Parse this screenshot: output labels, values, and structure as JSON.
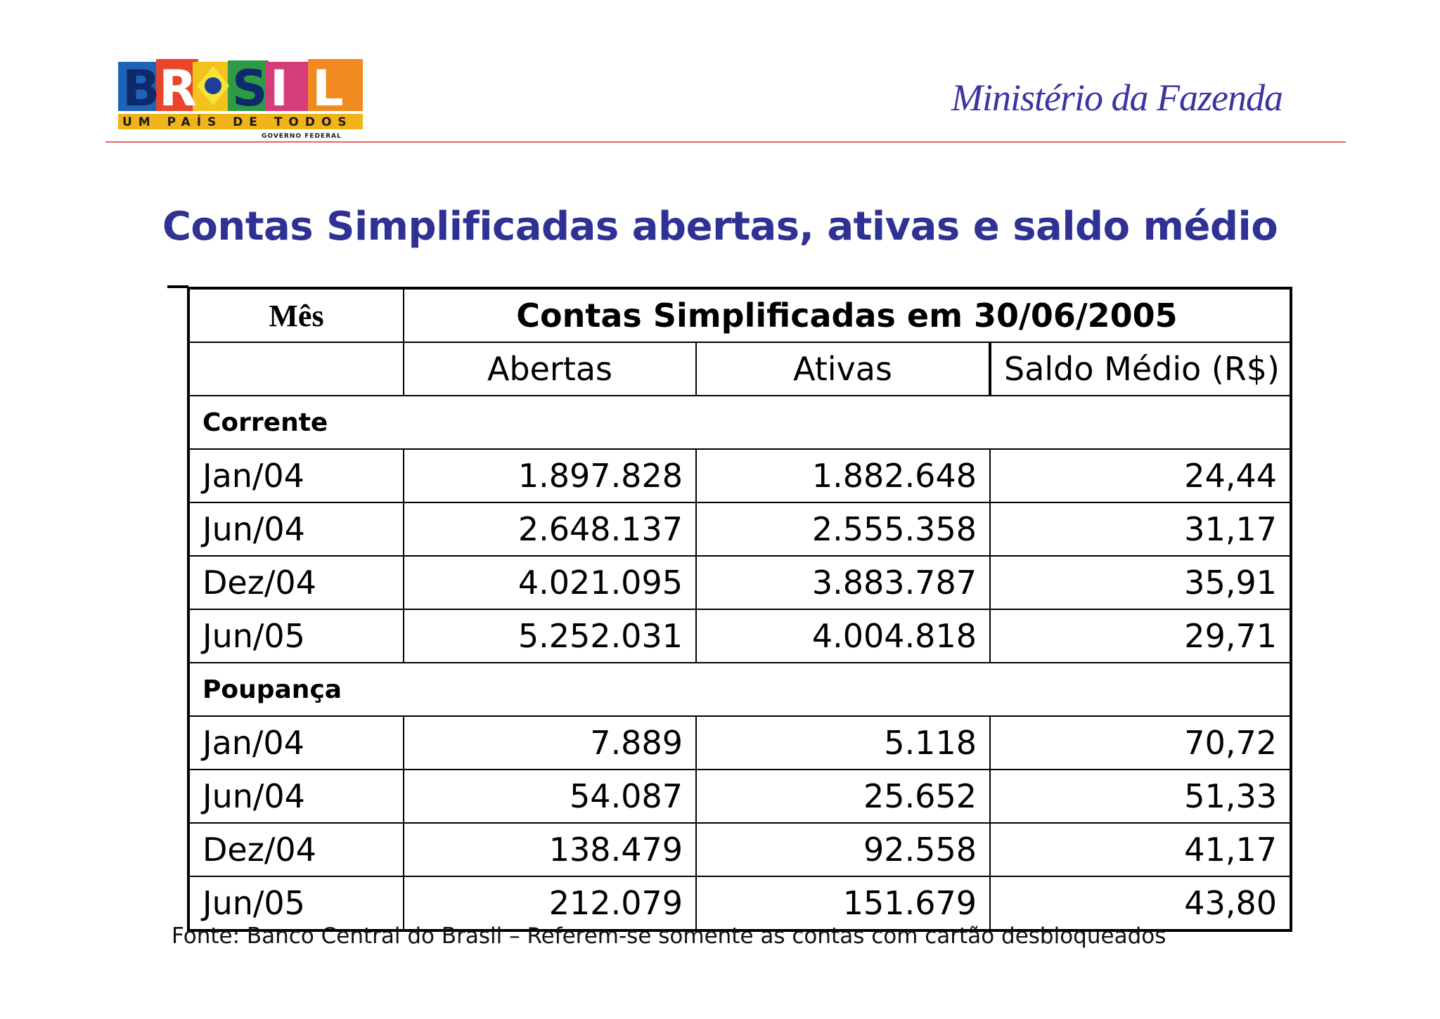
{
  "header": {
    "logo": {
      "word": "BRASIL",
      "slogan": "UM PAÍS DE TODOS",
      "subtitle": "GOVERNO FEDERAL"
    },
    "ministry": "Ministério da Fazenda"
  },
  "title": "Contas Simplificadas abertas, ativas e saldo médio",
  "table": {
    "month_header": "Mês",
    "group_header": "Contas Simplificadas em 30/06/2005",
    "columns": [
      "Abertas",
      "Ativas",
      "Saldo Médio (R$)"
    ],
    "sections": [
      {
        "label": "Corrente",
        "rows": [
          {
            "month": "Jan/04",
            "abertas": "1.897.828",
            "ativas": "1.882.648",
            "saldo": "24,44"
          },
          {
            "month": "Jun/04",
            "abertas": "2.648.137",
            "ativas": "2.555.358",
            "saldo": "31,17"
          },
          {
            "month": "Dez/04",
            "abertas": "4.021.095",
            "ativas": "3.883.787",
            "saldo": "35,91"
          },
          {
            "month": "Jun/05",
            "abertas": "5.252.031",
            "ativas": "4.004.818",
            "saldo": "29,71"
          }
        ]
      },
      {
        "label": "Poupança",
        "rows": [
          {
            "month": "Jan/04",
            "abertas": "7.889",
            "ativas": "5.118",
            "saldo": "70,72"
          },
          {
            "month": "Jun/04",
            "abertas": "54.087",
            "ativas": "25.652",
            "saldo": "51,33"
          },
          {
            "month": "Dez/04",
            "abertas": "138.479",
            "ativas": "92.558",
            "saldo": "41,17"
          },
          {
            "month": "Jun/05",
            "abertas": "212.079",
            "ativas": "151.679",
            "saldo": "43,80"
          }
        ]
      }
    ]
  },
  "footer": {
    "source": "Fonte: Banco Central do Brasil – Referem-se somente as contas com cartão desbloqueados"
  },
  "colors": {
    "title": "#2f3194",
    "ministry": "#3a35a0",
    "header_rule": "#e06868"
  }
}
